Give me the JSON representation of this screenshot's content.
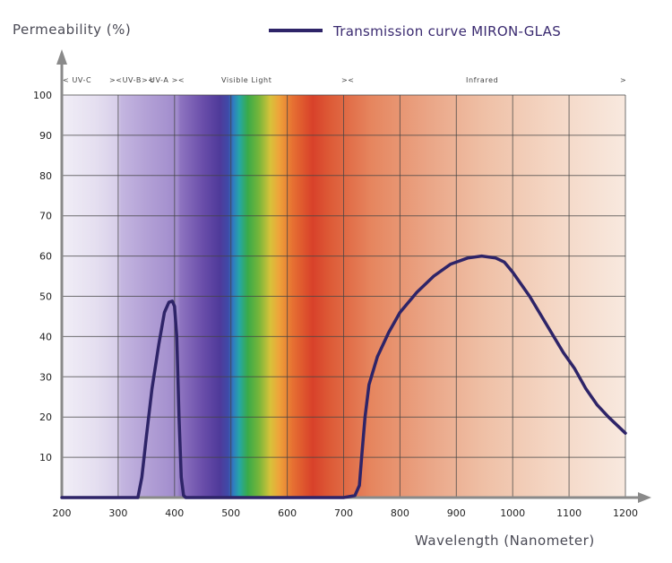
{
  "chart_data": {
    "type": "line",
    "legend": {
      "label": "Transmission curve MIRON-GLAS",
      "color": "#2e2468",
      "placement": "top-right"
    },
    "ylabel": "Permeability (%)",
    "xlabel": "Wavelength (Nanometer)",
    "xlim": [
      200,
      1200
    ],
    "ylim": [
      0,
      100
    ],
    "x_ticks": [
      200,
      300,
      400,
      500,
      600,
      700,
      800,
      900,
      1000,
      1100,
      1200
    ],
    "y_ticks": [
      10,
      20,
      30,
      40,
      50,
      60,
      70,
      80,
      90,
      100
    ],
    "grid": true,
    "band_labels": {
      "uvc": "<    UV-C",
      "uvb": "><UV-B><",
      "uva": "UV-A  ><",
      "visible": "Visible  Light",
      "vis_end": "><",
      "infrared": "Infrared",
      "ir_end": ">"
    },
    "series": [
      {
        "name": "Transmission curve MIRON-GLAS",
        "color": "#2e2468",
        "x": [
          200,
          335,
          342,
          350,
          360,
          372,
          382,
          390,
          396,
          400,
          404,
          408,
          412,
          416,
          420,
          430,
          500,
          600,
          700,
          720,
          728,
          732,
          738,
          745,
          760,
          780,
          800,
          830,
          860,
          890,
          920,
          945,
          970,
          985,
          1000,
          1030,
          1060,
          1090,
          1110,
          1130,
          1150,
          1170,
          1200
        ],
        "y": [
          0,
          0,
          5,
          15,
          27,
          38,
          46,
          48.5,
          48.8,
          47.5,
          40,
          20,
          5,
          0.5,
          0,
          0,
          0,
          0,
          0,
          0.5,
          3,
          10,
          20,
          28,
          35,
          41,
          46,
          51,
          55,
          58,
          59.5,
          60,
          59.5,
          58.5,
          56,
          50,
          43,
          36,
          32,
          27,
          23,
          20,
          16
        ]
      }
    ]
  }
}
